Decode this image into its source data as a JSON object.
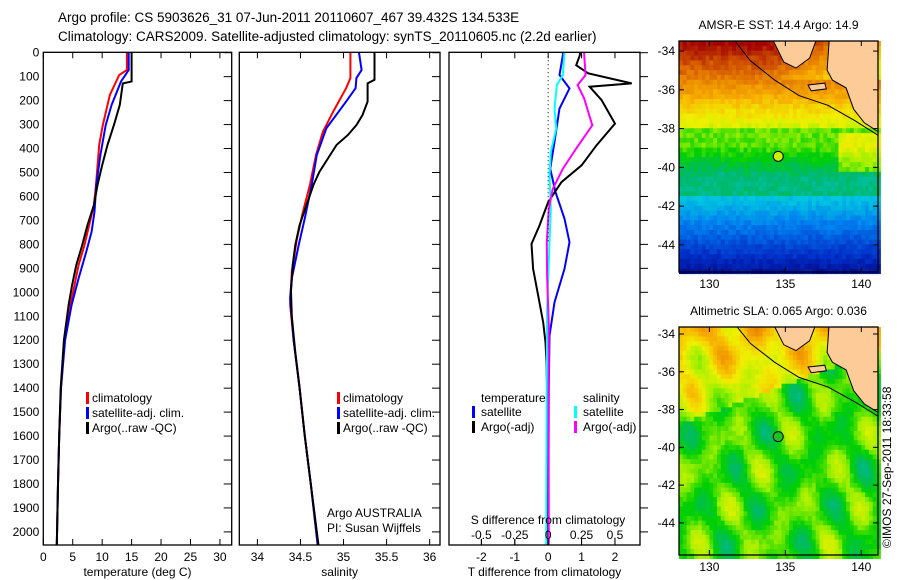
{
  "header": {
    "line1": "Argo profile: CS 5903626_31 07-Jun-2011 20110607_467 39.432S 134.533E",
    "line2": "Climatology: CARS2009. Satellite-adjusted climatology: synTS_20110605.nc (2.2d earlier)"
  },
  "watermark": "©IMOS 27-Sep-2011 18:33:58",
  "colors": {
    "climatology": "#ff0000",
    "satellite": "#0000ff",
    "argo": "#000000",
    "sal_satellite": "#00ffff",
    "sal_argo": "#ff00ff",
    "land": "#fccb98"
  },
  "chart_data": [
    {
      "type": "line",
      "name": "temperature",
      "xlabel": "temperature (deg C)",
      "ylabel": "depth",
      "xlim": [
        0,
        32
      ],
      "ylim": [
        0,
        2055
      ],
      "xticks": [
        "0",
        "5",
        "10",
        "15",
        "20",
        "25",
        "30"
      ],
      "xtick_values": [
        0,
        5,
        10,
        15,
        20,
        25,
        30
      ],
      "yticks": [
        "0",
        "100",
        "200",
        "300",
        "400",
        "500",
        "600",
        "700",
        "800",
        "900",
        "1000",
        "1100",
        "1200",
        "1300",
        "1400",
        "1500",
        "1600",
        "1700",
        "1800",
        "1900",
        "2000"
      ],
      "legend": [
        "climatology",
        "satellite-adj. clim.",
        "Argo(..raw -QC)"
      ],
      "series": [
        {
          "name": "climatology",
          "color": "#ff0000",
          "points": [
            [
              0,
              14.2
            ],
            [
              72,
              14.2
            ],
            [
              93,
              12.9
            ],
            [
              177,
              11.3
            ],
            [
              302,
              10.1
            ],
            [
              385,
              9.5
            ],
            [
              552,
              8.95
            ],
            [
              636,
              8.6
            ],
            [
              719,
              7.8
            ],
            [
              803,
              7.0
            ],
            [
              886,
              6.0
            ],
            [
              970,
              5.3
            ],
            [
              1053,
              4.6
            ],
            [
              1200,
              3.6
            ],
            [
              1400,
              3.0
            ],
            [
              1600,
              2.7
            ],
            [
              1800,
              2.5
            ],
            [
              2055,
              2.3
            ]
          ]
        },
        {
          "name": "satellite-adj. clim.",
          "color": "#0000ff",
          "points": [
            [
              0,
              14.5
            ],
            [
              72,
              14.5
            ],
            [
              120,
              13.2
            ],
            [
              218,
              11.6
            ],
            [
              302,
              10.6
            ],
            [
              427,
              9.7
            ],
            [
              552,
              9.0
            ],
            [
              663,
              8.7
            ],
            [
              747,
              8.2
            ],
            [
              830,
              7.3
            ],
            [
              942,
              6.0
            ],
            [
              1053,
              4.8
            ],
            [
              1200,
              3.7
            ],
            [
              1400,
              3.0
            ],
            [
              1600,
              2.7
            ],
            [
              1800,
              2.5
            ],
            [
              2055,
              2.3
            ]
          ]
        },
        {
          "name": "Argo(..raw -QC)",
          "color": "#000000",
          "points": [
            [
              0,
              15.0
            ],
            [
              120,
              15.0
            ],
            [
              128,
              13.5
            ],
            [
              218,
              13.0
            ],
            [
              302,
              12.0
            ],
            [
              385,
              10.9
            ],
            [
              469,
              10.0
            ],
            [
              552,
              9.2
            ],
            [
              636,
              8.6
            ],
            [
              719,
              7.5
            ],
            [
              803,
              6.6
            ],
            [
              886,
              5.6
            ],
            [
              970,
              4.9
            ],
            [
              1053,
              4.3
            ],
            [
              1200,
              3.5
            ],
            [
              1400,
              2.95
            ],
            [
              1600,
              2.7
            ],
            [
              1800,
              2.5
            ],
            [
              2055,
              2.3
            ]
          ]
        }
      ]
    },
    {
      "type": "line",
      "name": "salinity",
      "xlabel": "salinity",
      "xlim": [
        33.79,
        36.12
      ],
      "ylim": [
        0,
        2055
      ],
      "xticks": [
        "34",
        "34.5",
        "35",
        "35.5",
        "36"
      ],
      "xtick_values": [
        34,
        34.5,
        35,
        35.5,
        36
      ],
      "legend": [
        "climatology",
        "satellite-adj. clim.",
        "Argo(..raw -QC)"
      ],
      "annotation": [
        "Argo AUSTRALIA",
        "PI: Susan Wijffels"
      ],
      "series": [
        {
          "name": "climatology",
          "color": "#ff0000",
          "points": [
            [
              0,
              35.08
            ],
            [
              106,
              35.08
            ],
            [
              148,
              35.03
            ],
            [
              246,
              34.88
            ],
            [
              330,
              34.76
            ],
            [
              427,
              34.68
            ],
            [
              552,
              34.61
            ],
            [
              663,
              34.53
            ],
            [
              775,
              34.46
            ],
            [
              914,
              34.4
            ],
            [
              1050,
              34.38
            ],
            [
              1200,
              34.42
            ],
            [
              1400,
              34.49
            ],
            [
              1600,
              34.55
            ],
            [
              1800,
              34.62
            ],
            [
              2055,
              34.7
            ]
          ]
        },
        {
          "name": "satellite-adj. clim.",
          "color": "#0000ff",
          "points": [
            [
              0,
              35.18
            ],
            [
              72,
              35.21
            ],
            [
              106,
              35.15
            ],
            [
              148,
              35.14
            ],
            [
              204,
              35.03
            ],
            [
              316,
              34.8
            ],
            [
              427,
              34.69
            ],
            [
              552,
              34.63
            ],
            [
              691,
              34.55
            ],
            [
              803,
              34.48
            ],
            [
              942,
              34.4
            ],
            [
              1025,
              34.38
            ],
            [
              1200,
              34.42
            ],
            [
              1400,
              34.49
            ],
            [
              1600,
              34.55
            ],
            [
              1800,
              34.62
            ],
            [
              2055,
              34.7
            ]
          ]
        },
        {
          "name": "Argo(..raw -QC)",
          "color": "#000000",
          "points": [
            [
              0,
              35.36
            ],
            [
              113,
              35.36
            ],
            [
              128,
              35.28
            ],
            [
              204,
              35.28
            ],
            [
              260,
              35.22
            ],
            [
              302,
              35.15
            ],
            [
              344,
              35.05
            ],
            [
              385,
              34.92
            ],
            [
              441,
              34.82
            ],
            [
              497,
              34.72
            ],
            [
              552,
              34.65
            ],
            [
              636,
              34.57
            ],
            [
              719,
              34.49
            ],
            [
              803,
              34.44
            ],
            [
              886,
              34.41
            ],
            [
              997,
              34.39
            ],
            [
              1100,
              34.4
            ],
            [
              1250,
              34.44
            ],
            [
              1400,
              34.49
            ],
            [
              1600,
              34.55
            ],
            [
              1800,
              34.62
            ],
            [
              2055,
              34.71
            ]
          ]
        }
      ]
    },
    {
      "type": "line",
      "name": "difference",
      "xlabel": "T difference from climatology",
      "xlabel2": "S difference from climatology",
      "xlim": [
        -2.97,
        2.75
      ],
      "xlim_s": [
        -0.7425,
        0.6875
      ],
      "xticks": [
        "-2",
        "-1",
        "0",
        "1",
        "2"
      ],
      "xtick_values": [
        -2,
        -1,
        0,
        1,
        2
      ],
      "sticks": [
        "-0.5",
        "-0.25",
        "0",
        "0.25",
        "0.5"
      ],
      "stick_values": [
        -0.5,
        -0.25,
        0,
        0.25,
        0.5
      ],
      "legend": {
        "temperature_title": "temperature",
        "salinity_title": "salinity",
        "satellite": "satellite",
        "argo": "Argo(-adj)"
      },
      "series": [
        {
          "name": "T satellite",
          "var": "T",
          "color": "#0000ff",
          "points": [
            [
              0,
              0.44
            ],
            [
              10,
              0.44
            ],
            [
              93,
              0.34
            ],
            [
              149,
              0.64
            ],
            [
              233,
              0.34
            ],
            [
              372,
              0.19
            ],
            [
              484,
              0.06
            ],
            [
              582,
              0.22
            ],
            [
              693,
              0.49
            ],
            [
              791,
              0.64
            ],
            [
              902,
              0.49
            ],
            [
              1042,
              0.19
            ],
            [
              1181,
              0.04
            ],
            [
              1400,
              0.02
            ],
            [
              2055,
              0.0
            ]
          ]
        },
        {
          "name": "T Argo(-adj)",
          "var": "T",
          "color": "#000000",
          "points": [
            [
              0,
              0.95
            ],
            [
              10,
              0.95
            ],
            [
              52,
              0.84
            ],
            [
              86,
              1.2
            ],
            [
              128,
              2.5
            ],
            [
              142,
              1.24
            ],
            [
              198,
              1.6
            ],
            [
              296,
              2.0
            ],
            [
              386,
              1.45
            ],
            [
              470,
              1.0
            ],
            [
              540,
              0.4
            ],
            [
              623,
              0.0
            ],
            [
              721,
              -0.26
            ],
            [
              798,
              -0.5
            ],
            [
              902,
              -0.45
            ],
            [
              1014,
              -0.3
            ],
            [
              1126,
              -0.15
            ],
            [
              1209,
              -0.08
            ],
            [
              1293,
              -0.05
            ],
            [
              1500,
              -0.02
            ],
            [
              2055,
              0.0
            ]
          ]
        },
        {
          "name": "S satellite",
          "var": "S",
          "color": "#00ffff",
          "points": [
            [
              0,
              0.12
            ],
            [
              10,
              0.12
            ],
            [
              93,
              0.11
            ],
            [
              135,
              0.065
            ],
            [
              233,
              0.047
            ],
            [
              317,
              0.06
            ],
            [
              414,
              0.02
            ],
            [
              512,
              0.01
            ],
            [
              651,
              0.02
            ],
            [
              791,
              0.01
            ],
            [
              1070,
              -0.008
            ],
            [
              1500,
              -0.012
            ],
            [
              2055,
              -0.015
            ]
          ]
        },
        {
          "name": "S Argo(-adj)",
          "var": "S",
          "color": "#ff00ff",
          "points": [
            [
              0,
              0.27
            ],
            [
              10,
              0.27
            ],
            [
              93,
              0.28
            ],
            [
              135,
              0.22
            ],
            [
              191,
              0.27
            ],
            [
              303,
              0.33
            ],
            [
              400,
              0.21
            ],
            [
              484,
              0.11
            ],
            [
              568,
              0.035
            ],
            [
              651,
              0.005
            ],
            [
              791,
              -0.01
            ],
            [
              930,
              -0.008
            ],
            [
              1139,
              0.005
            ],
            [
              1500,
              0.003
            ],
            [
              2055,
              0.005
            ]
          ]
        }
      ]
    },
    {
      "type": "heatmap",
      "name": "sst-map",
      "title": "AMSR-E SST: 14.4 Argo: 14.9",
      "lon_range": [
        128.0,
        141.1
      ],
      "lat_range": [
        -45.4,
        -33.48
      ],
      "xticks": [
        "130",
        "135",
        "140"
      ],
      "xtick_values": [
        130,
        135,
        140
      ],
      "yticks": [
        "-34",
        "-36",
        "-38",
        "-40",
        "-42",
        "-44"
      ],
      "ytick_values": [
        -34,
        -36,
        -38,
        -40,
        -42,
        -44
      ],
      "float_position": [
        134.533,
        -39.432
      ]
    },
    {
      "type": "heatmap",
      "name": "sla-map",
      "title": "Altimetric SLA: 0.065 Argo: 0.036",
      "lon_range": [
        128.0,
        141.1
      ],
      "lat_range": [
        -45.7,
        -33.63
      ],
      "xticks": [
        "130",
        "135",
        "140"
      ],
      "xtick_values": [
        130,
        135,
        140
      ],
      "yticks": [
        "-34",
        "-36",
        "-38",
        "-40",
        "-42",
        "-44"
      ],
      "ytick_values": [
        -34,
        -36,
        -38,
        -40,
        -42,
        -44
      ],
      "float_position": [
        134.533,
        -39.432
      ]
    }
  ],
  "coast": {
    "land": [
      [
        134.1,
        -33.3
      ],
      [
        134.9,
        -34.57
      ],
      [
        135.7,
        -34.88
      ],
      [
        136.6,
        -34.36
      ],
      [
        137.1,
        -33.3
      ],
      [
        137.9,
        -33.3
      ],
      [
        137.75,
        -34.98
      ],
      [
        138.1,
        -35.5
      ],
      [
        139.0,
        -35.9
      ],
      [
        139.5,
        -37.0
      ],
      [
        140.2,
        -37.7
      ],
      [
        141.2,
        -38.2
      ],
      [
        141.2,
        -33.3
      ]
    ],
    "island": [
      [
        136.5,
        -35.75
      ],
      [
        137.6,
        -35.65
      ],
      [
        137.7,
        -35.95
      ],
      [
        136.7,
        -36.05
      ]
    ],
    "shelf": [
      [
        131.5,
        -33.3
      ],
      [
        132.7,
        -34.5
      ],
      [
        134.3,
        -35.5
      ],
      [
        135.9,
        -36.3
      ],
      [
        137.8,
        -36.8
      ],
      [
        139.6,
        -37.6
      ],
      [
        141.2,
        -38.4
      ]
    ]
  }
}
